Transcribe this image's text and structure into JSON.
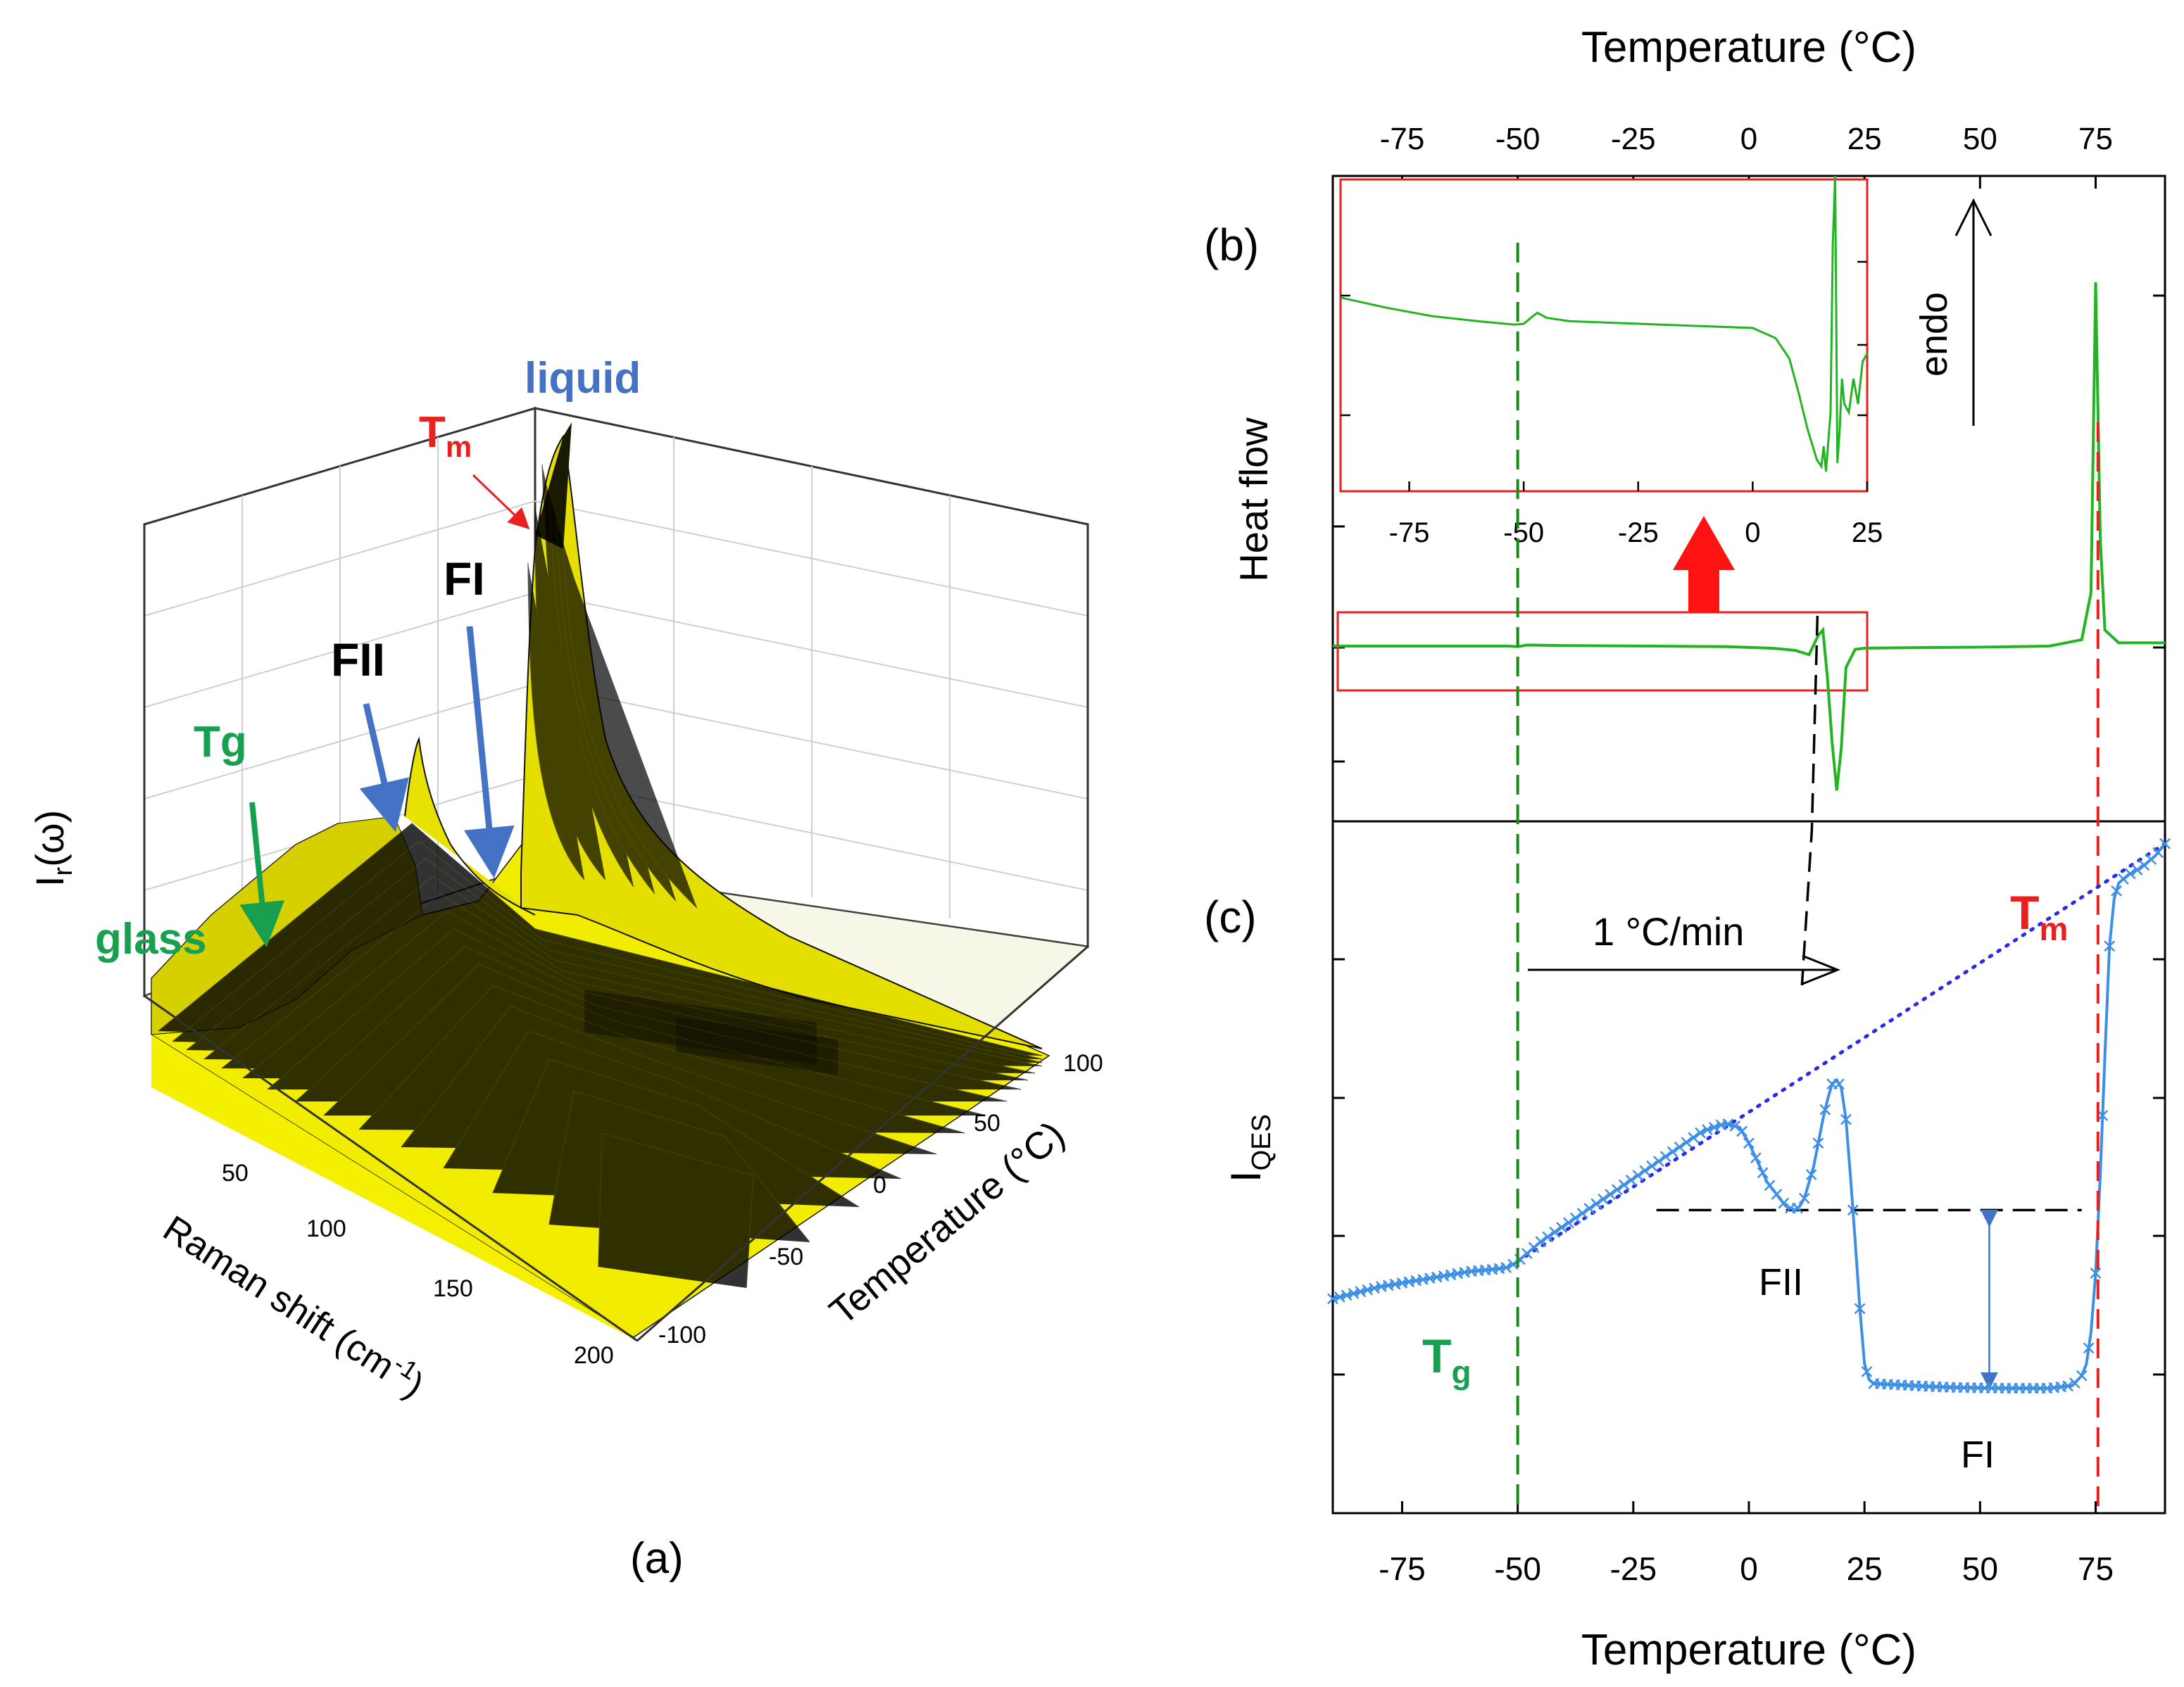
{
  "figure": {
    "panel_a_label": "(a)",
    "panel_b_label": "(b)",
    "panel_c_label": "(c)"
  },
  "chart_data": [
    {
      "id": "a",
      "type": "surface-3d",
      "title": "",
      "zlabel_main": "I",
      "zlabel_sub": "r",
      "zlabel_tail": "(ω)",
      "xlabel": "Raman shift (cm",
      "xlabel_sup": "-1",
      "xlabel_tail": ")",
      "ylabel": "Temperature (°C)",
      "x_ticks": [
        "50",
        "100",
        "150",
        "200"
      ],
      "y_ticks": [
        "-100",
        "-50",
        "0",
        "50",
        "100"
      ],
      "xlim": [
        0,
        200
      ],
      "ylim": [
        -100,
        100
      ],
      "annotations": {
        "liquid": "liquid",
        "tm_main": "T",
        "tm_sub": "m",
        "fi": "FI",
        "fii": "FII",
        "tg": "Tg",
        "glass": "glass"
      },
      "surface_color": "#f4ef00"
    },
    {
      "id": "b",
      "type": "line",
      "ylabel": "Heat flow",
      "top_axis_label": "Temperature (°C)",
      "x_ticks": [
        -75,
        -50,
        -25,
        0,
        25,
        50,
        75
      ],
      "xlim": [
        -90,
        90
      ],
      "endo_label": "endo",
      "series": [
        {
          "name": "DSC heat flow",
          "color": "#22b422",
          "x": [
            -90,
            -60,
            -52,
            -50,
            -48,
            -40,
            -20,
            -5,
            5,
            10,
            13,
            15,
            16,
            17,
            18,
            19,
            20,
            21,
            23,
            25,
            35,
            50,
            65,
            72,
            74,
            75,
            76,
            77,
            80,
            90
          ],
          "y": [
            0.0,
            0.0,
            0.0,
            -0.005,
            0.01,
            0.005,
            0.0,
            -0.005,
            -0.02,
            -0.04,
            -0.08,
            0.1,
            0.15,
            -0.3,
            -0.9,
            -1.35,
            -0.95,
            -0.2,
            -0.03,
            -0.02,
            -0.015,
            -0.01,
            0.0,
            0.06,
            0.5,
            3.4,
            1.0,
            0.15,
            0.03,
            0.03
          ]
        }
      ],
      "inset": {
        "x_ticks": [
          -75,
          -50,
          -25,
          0,
          25
        ],
        "xlim": [
          -90,
          25
        ],
        "series": {
          "x": [
            -90,
            -80,
            -70,
            -60,
            -52,
            -50,
            -48,
            -47,
            -45,
            -40,
            -30,
            -20,
            -10,
            0,
            5,
            8,
            10,
            12,
            14,
            15,
            15.5,
            16,
            17,
            17.5,
            18,
            18.5,
            19,
            19.5,
            20,
            21,
            22,
            23,
            24,
            25
          ],
          "y": [
            0.28,
            0.22,
            0.17,
            0.14,
            0.12,
            0.125,
            0.17,
            0.19,
            0.16,
            0.14,
            0.13,
            0.12,
            0.11,
            0.1,
            0.04,
            -0.08,
            -0.28,
            -0.5,
            -0.68,
            -0.72,
            -0.6,
            -0.75,
            -0.4,
            0.6,
            1.0,
            -0.7,
            -0.5,
            -0.2,
            -0.35,
            -0.4,
            -0.2,
            -0.35,
            -0.1,
            -0.05
          ]
        }
      },
      "guide_lines": {
        "tg": -50,
        "tm": 75.5,
        "fii": 13
      }
    },
    {
      "id": "c",
      "type": "line",
      "ylabel_main": "I",
      "ylabel_sub": "QES",
      "xlabel": "Temperature (°C)",
      "x_ticks": [
        -75,
        -50,
        -25,
        0,
        25,
        50,
        75
      ],
      "xlim": [
        -90,
        90
      ],
      "rate_label": "1 °C/min",
      "annotations": {
        "tg_main": "T",
        "tg_sub": "g",
        "tm_main": "T",
        "tm_sub": "m",
        "fii": "FII",
        "fi": "FI"
      },
      "series": [
        {
          "name": "I_QES",
          "color": "#3d8fe6",
          "marker": "x",
          "x": [
            -90,
            -85,
            -80,
            -75,
            -70,
            -65,
            -60,
            -55,
            -52,
            -50,
            -47,
            -45,
            -40,
            -35,
            -30,
            -25,
            -20,
            -15,
            -10,
            -5,
            -2,
            0,
            2,
            4,
            6,
            8,
            10,
            11,
            12,
            14,
            16,
            17,
            18,
            19,
            20,
            21,
            22,
            23,
            24,
            25,
            26,
            27,
            30,
            35,
            40,
            45,
            50,
            55,
            60,
            65,
            70,
            72,
            73,
            74,
            75,
            76,
            77,
            78,
            79,
            80,
            82,
            85,
            88,
            90
          ],
          "y": [
            0.285,
            0.3,
            0.315,
            0.325,
            0.335,
            0.345,
            0.355,
            0.36,
            0.365,
            0.38,
            0.41,
            0.43,
            0.47,
            0.51,
            0.55,
            0.59,
            0.63,
            0.67,
            0.71,
            0.73,
            0.72,
            0.68,
            0.63,
            0.58,
            0.55,
            0.52,
            0.51,
            0.52,
            0.54,
            0.62,
            0.74,
            0.79,
            0.83,
            0.84,
            0.82,
            0.74,
            0.59,
            0.43,
            0.26,
            0.12,
            0.08,
            0.07,
            0.068,
            0.065,
            0.062,
            0.06,
            0.059,
            0.058,
            0.058,
            0.058,
            0.065,
            0.09,
            0.12,
            0.2,
            0.35,
            0.6,
            0.9,
            1.18,
            1.3,
            1.34,
            1.36,
            1.38,
            1.41,
            1.44
          ]
        }
      ],
      "liquid_trend": {
        "x": [
          -50,
          90
        ],
        "y": [
          0.38,
          1.44
        ]
      },
      "fii_level": {
        "x": [
          -20,
          72
        ],
        "y": 0.51
      },
      "fi_level": 0.062,
      "guide_lines": {
        "tg": -50,
        "tm": 75.5
      }
    }
  ]
}
